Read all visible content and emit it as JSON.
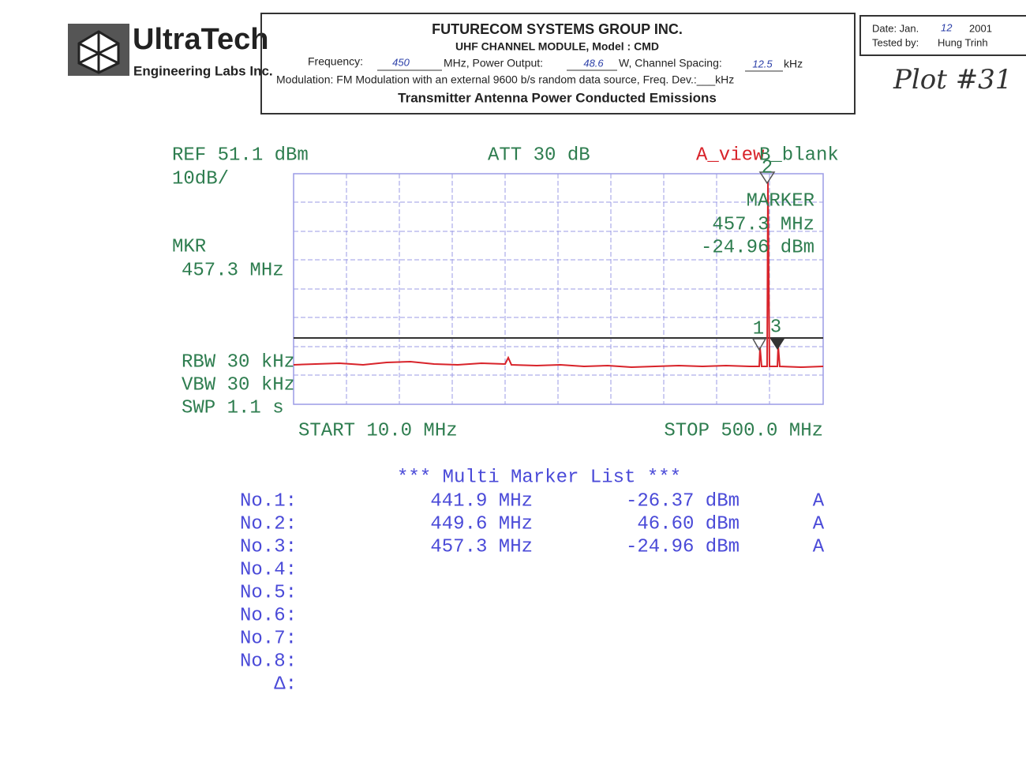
{
  "header": {
    "logo_name": "UltraTech",
    "logo_sub": "Engineering Labs Inc.",
    "company": "FUTURECOM SYSTEMS GROUP INC.",
    "model": "UHF CHANNEL MODULE, Model : CMD",
    "frequency_line": [
      "Frequency:",
      "450",
      "MHz, Power Output:",
      "48.6",
      "W, Channel Spacing:",
      "12.5",
      "kHz"
    ],
    "modulation": "Modulation: FM Modulation with an external 9600 b/s random data source, Freq. Dev.:___kHz",
    "test_title": "Transmitter Antenna Power Conducted Emissions",
    "date_label": "Date: Jan.",
    "date_day": "12",
    "date_year": "2001",
    "tested_by_label": "Tested by:",
    "tested_by": "Hung Trinh",
    "plot_note": "Plot #31"
  },
  "screen": {
    "ref": "REF 51.1 dBm",
    "scale": "10dB/",
    "att": "ATT 30 dB",
    "trace_a": "A_view",
    "trace_b": "B_blank",
    "mkr_label": "MKR",
    "mkr_freq": "457.3 MHz",
    "marker_label": "MARKER",
    "marker_freq": "457.3 MHz",
    "marker_level": "-24.96 dBm",
    "rbw": "RBW 30 kHz",
    "vbw": "VBW 30 kHz",
    "swp": "SWP 1.1 s",
    "start": "START 10.0 MHz",
    "stop": "STOP 500.0 MHz",
    "marker_numbers": [
      "1",
      "2",
      "3"
    ]
  },
  "table": {
    "title": "*** Multi Marker List ***",
    "rows": [
      [
        "No.1:",
        "441.9 MHz",
        "-26.37 dBm",
        "A"
      ],
      [
        "No.2:",
        "449.6 MHz",
        "46.60 dBm",
        "A"
      ],
      [
        "No.3:",
        "457.3 MHz",
        "-24.96 dBm",
        "A"
      ],
      [
        "No.4:"
      ],
      [
        "No.5:"
      ],
      [
        "No.6:"
      ],
      [
        "No.7:"
      ],
      [
        "No.8:"
      ],
      [
        "Δ:"
      ]
    ]
  }
}
